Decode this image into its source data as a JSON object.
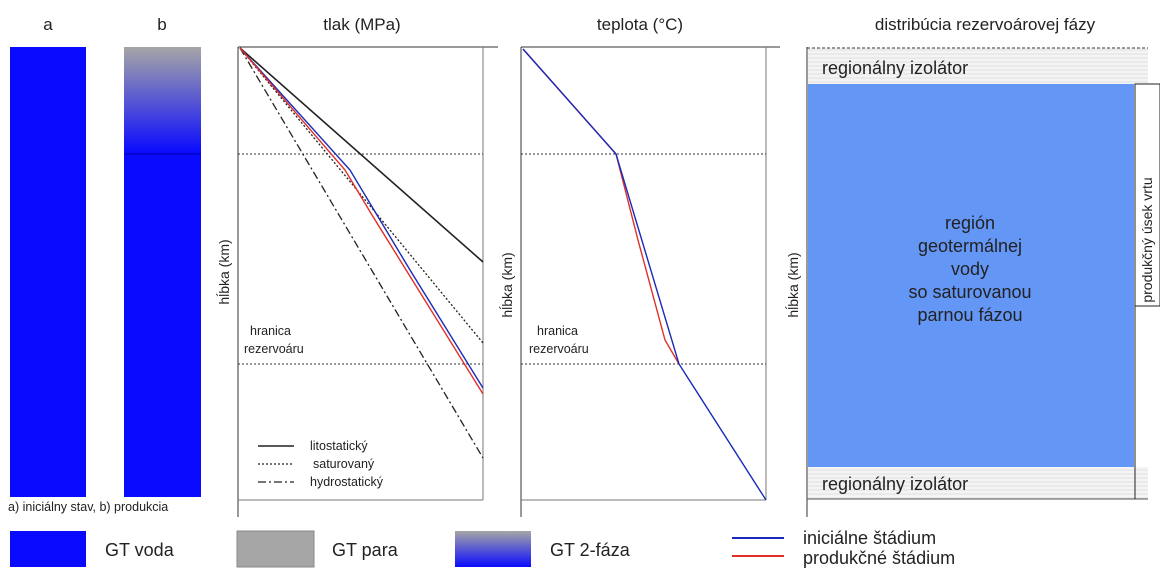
{
  "titles": {
    "col_a": "a",
    "col_b": "b",
    "pressure": "tlak (MPa)",
    "temperature": "teplota (°C)",
    "distribution": "distribúcia rezervoárovej fázy"
  },
  "caption": "a) iniciálny stav, b) produkcia",
  "axis": {
    "depth": "hĺbka (km)"
  },
  "boundary_label": [
    "hranica",
    "rezervoáru"
  ],
  "pressure_legend": {
    "litho": "litostatický",
    "saturated": "saturovaný",
    "hydro": "hydrostatický"
  },
  "distribution": {
    "top_insulator": "regionálny izolátor",
    "bottom_insulator": "regionálny izolátor",
    "region_lines": [
      "región",
      "geotermálnej",
      "vody",
      "so saturovanou",
      "parnou fázou"
    ],
    "well_section": "produkčný úsek vrtu"
  },
  "bottom_legend": {
    "water": "GT voda",
    "steam": "GT para",
    "two_phase": "GT 2-fáza",
    "initial": "iniciálne štádium",
    "production": "produkčné štádium"
  },
  "colors": {
    "water": "#0a0aff",
    "steam": "#a6a6a6",
    "region": "#6496f5",
    "insulator": "#f2f2f2",
    "initial": "#1a2ab8",
    "production": "#e0302a"
  }
}
